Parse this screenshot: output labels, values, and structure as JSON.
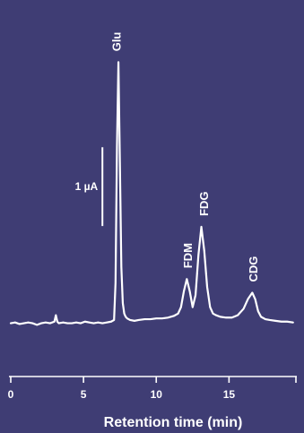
{
  "colors": {
    "background": "#3f3d74",
    "foreground": "#ffffff"
  },
  "chart_data": {
    "type": "line",
    "title": "",
    "xlabel": "Retention time (min)",
    "ylabel": "",
    "xlim": [
      0,
      19.6
    ],
    "ylim": [
      -0.15,
      3.8
    ],
    "xticks": [
      0,
      5,
      10,
      15
    ],
    "xtick_labels": [
      "0",
      "5",
      "10",
      "15"
    ],
    "grid": false,
    "legend": "none",
    "scale_bar": {
      "label": "1 µA",
      "x": 6.3,
      "y_start": 1.21,
      "y_end": 2.19
    },
    "series": [
      {
        "x": [
          0,
          0.3,
          0.6,
          0.9,
          1.2,
          1.5,
          1.8,
          2.1,
          2.4,
          2.7,
          3.0,
          3.1,
          3.2,
          3.3,
          3.6,
          3.9,
          4.2,
          4.5,
          4.8,
          5.1,
          5.4,
          5.7,
          6.0,
          6.3,
          6.6,
          6.9,
          7.1,
          7.2,
          7.3,
          7.4,
          7.5,
          7.6,
          7.7,
          7.8,
          7.9,
          8.0,
          8.2,
          8.5,
          8.8,
          9.2,
          9.6,
          10.0,
          10.4,
          10.8,
          11.2,
          11.5,
          11.7,
          11.9,
          12.1,
          12.3,
          12.5,
          12.7,
          12.9,
          13.1,
          13.3,
          13.5,
          13.7,
          13.9,
          14.1,
          14.4,
          14.8,
          15.2,
          15.6,
          16.0,
          16.3,
          16.6,
          16.8,
          17.0,
          17.2,
          17.5,
          17.8,
          18.2,
          18.6,
          19.0,
          19.4
        ],
        "values": [
          0.0,
          0.01,
          -0.01,
          0.0,
          0.01,
          0.0,
          -0.02,
          0.0,
          0.01,
          0.0,
          0.02,
          0.1,
          0.02,
          0.0,
          0.01,
          0.0,
          0.0,
          0.01,
          0.0,
          0.02,
          0.01,
          0.0,
          0.01,
          0.0,
          0.01,
          0.02,
          0.04,
          0.5,
          2.2,
          3.25,
          2.0,
          0.7,
          0.25,
          0.12,
          0.08,
          0.06,
          0.04,
          0.03,
          0.04,
          0.05,
          0.05,
          0.06,
          0.06,
          0.07,
          0.09,
          0.12,
          0.2,
          0.4,
          0.55,
          0.4,
          0.2,
          0.35,
          0.85,
          1.2,
          0.9,
          0.45,
          0.2,
          0.12,
          0.1,
          0.08,
          0.07,
          0.07,
          0.1,
          0.18,
          0.3,
          0.38,
          0.3,
          0.15,
          0.08,
          0.05,
          0.04,
          0.03,
          0.02,
          0.02,
          0.01
        ]
      }
    ],
    "annotations": [
      {
        "text": "Glu",
        "x": 7.35
      },
      {
        "text": "FDM",
        "x": 12.25
      },
      {
        "text": "FDG",
        "x": 13.35
      },
      {
        "text": "CDG",
        "x": 16.75
      }
    ]
  }
}
